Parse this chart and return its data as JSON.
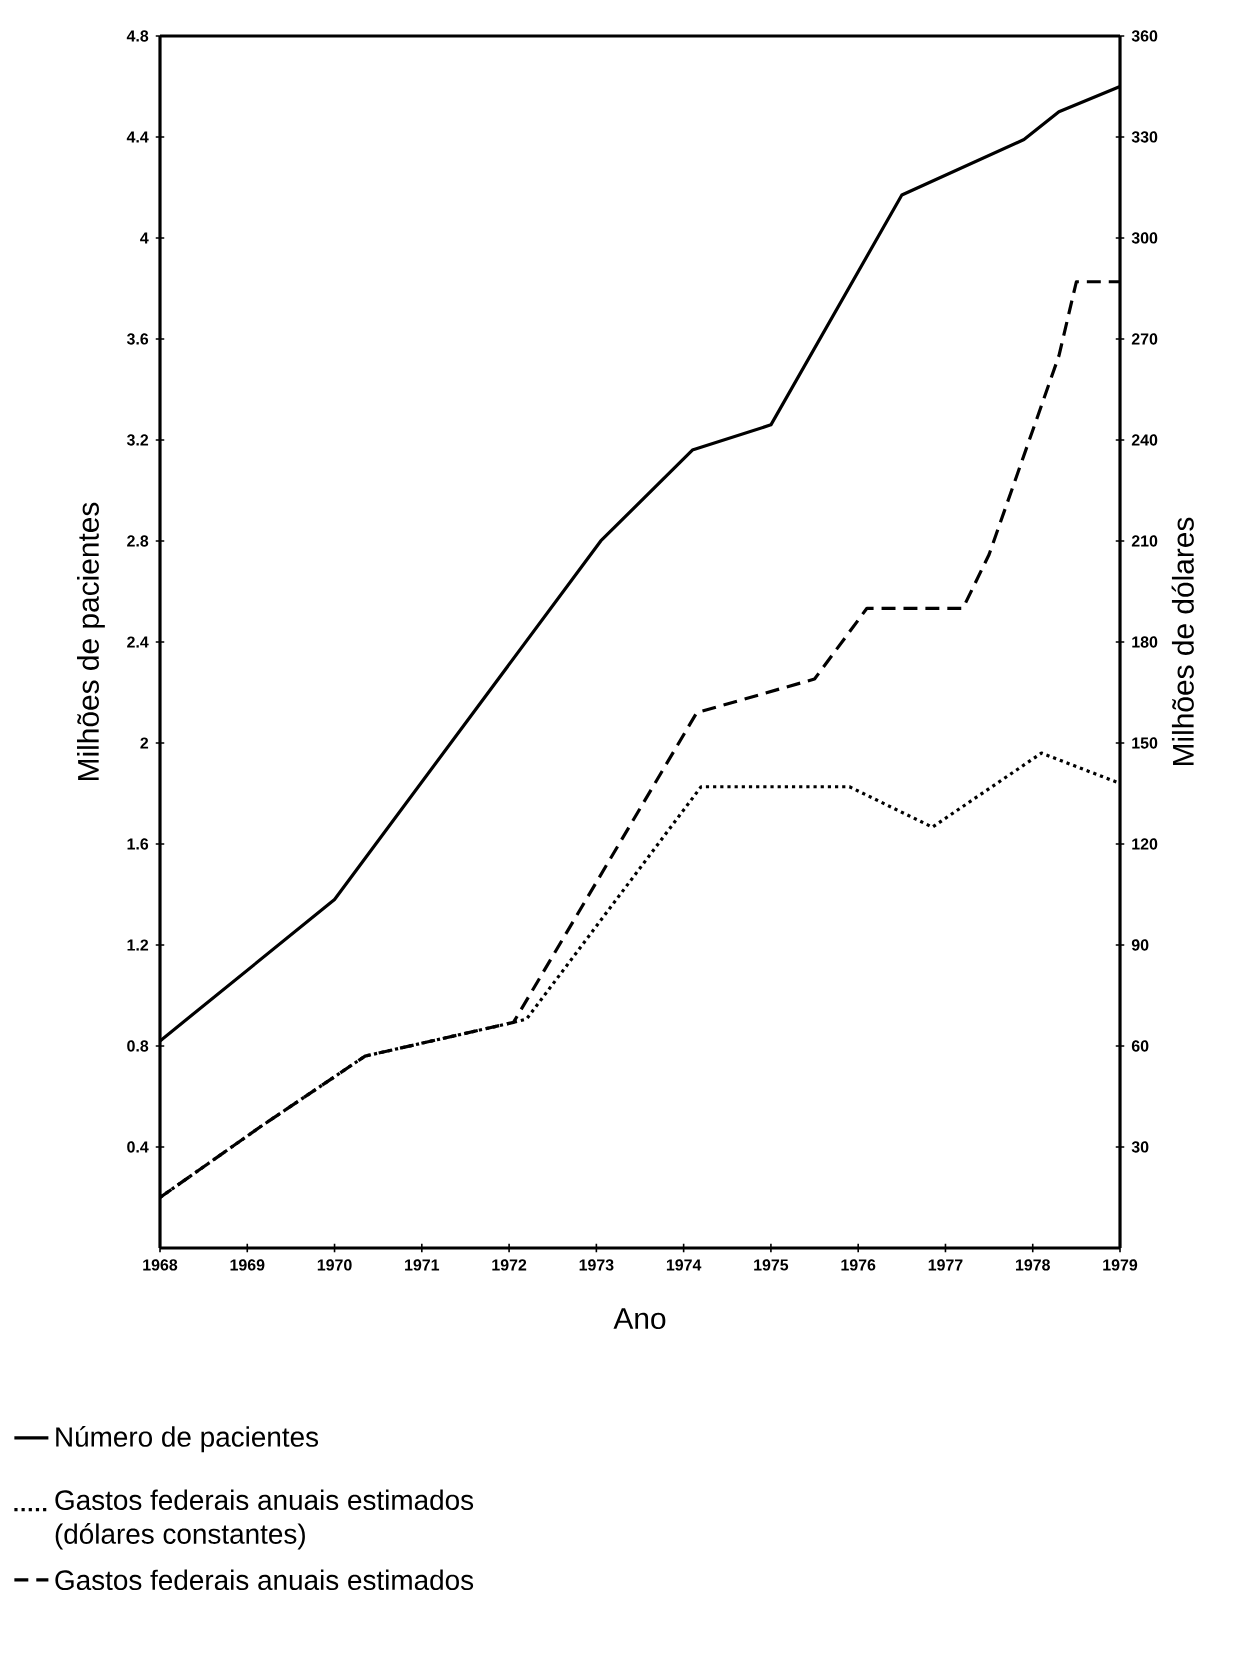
{
  "chart_data": {
    "type": "line",
    "xlabel": "Ano",
    "ylabel": "Milhões de pacientes",
    "y2label": "Milhões de dólares",
    "xlim": [
      1968,
      1979
    ],
    "xticks": [
      1968,
      1969,
      1970,
      1971,
      1972,
      1973,
      1974,
      1975,
      1976,
      1977,
      1978,
      1979
    ],
    "ylim": [
      0,
      4.8
    ],
    "yticks": [
      0.4,
      0.8,
      1.2,
      1.6,
      2,
      2.4,
      2.8,
      3.2,
      3.6,
      4,
      4.4,
      4.8
    ],
    "y2lim": [
      0,
      360
    ],
    "y2ticks": [
      30,
      60,
      90,
      120,
      150,
      180,
      210,
      240,
      270,
      300,
      330,
      360
    ],
    "marker": "none",
    "legend": "bottom",
    "series": [
      {
        "name": "Número de pacientes",
        "color": "#000000",
        "line_style": "solid",
        "x": [
          1968,
          1970,
          1973.05,
          1974.1,
          1975,
          1976.5,
          1977.9,
          1978.3,
          1979
        ],
        "values": [
          0.82,
          1.38,
          2.8,
          3.16,
          3.26,
          4.17,
          4.39,
          4.5,
          4.6
        ]
      },
      {
        "name": "Gastos federais anuais estimados (dólares constantes)",
        "color": "#000000",
        "line_style": "dotted",
        "axis": "y2",
        "x": [
          1968,
          1969.15,
          1970.35,
          1972.05,
          1972.2,
          1974.2,
          1975.9,
          1976.85,
          1978.1,
          1979
        ],
        "values": [
          15,
          36,
          57,
          67,
          68,
          137,
          137,
          125,
          147,
          138
        ]
      },
      {
        "name": "Gastos federais anuais estimados",
        "color": "#000000",
        "line_style": "dashed",
        "axis": "y2",
        "x": [
          1968,
          1969.15,
          1970.35,
          1972.05,
          1974.15,
          1975.5,
          1976.1,
          1977.2,
          1977.5,
          1978.3,
          1978.5,
          1979
        ],
        "values": [
          15,
          36,
          57,
          67,
          159,
          169,
          190,
          190,
          206,
          265,
          287,
          287
        ]
      }
    ]
  }
}
